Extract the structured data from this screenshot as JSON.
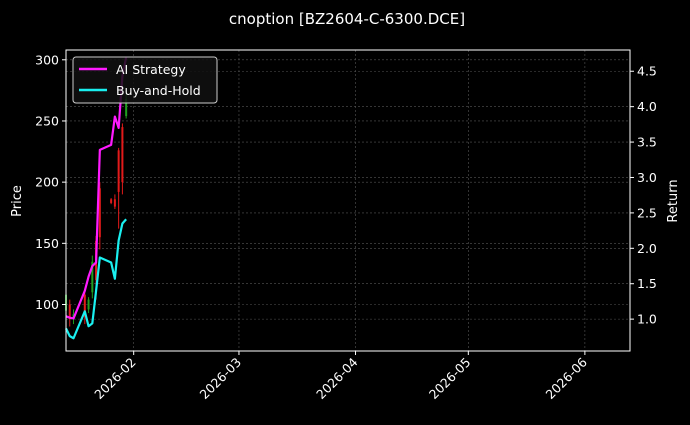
{
  "chart_data": {
    "type": "line",
    "title": "cnoption [BZ2604-C-6300.DCE]",
    "ylabel": "Price",
    "y2label": "Return",
    "xlim": [
      "2026-01-14",
      "2026-06-13"
    ],
    "ylim": [
      62,
      308
    ],
    "y2lim": [
      0.55,
      4.8
    ],
    "xticks": [
      "2026-02",
      "2026-03",
      "2026-04",
      "2026-05",
      "2026-06"
    ],
    "xtick_dates": [
      "2026-02-01",
      "2026-03-01",
      "2026-04-01",
      "2026-05-01",
      "2026-06-01"
    ],
    "yticks": [
      100,
      150,
      200,
      250,
      300
    ],
    "y2ticks": [
      "1.0",
      "1.5",
      "2.0",
      "2.5",
      "3.0",
      "3.5",
      "4.0",
      "4.5"
    ],
    "grid": true,
    "legend_position": "top-left",
    "background": "#000000",
    "colors": {
      "up": "#1f9e1f",
      "down": "#e31a1a",
      "strategy": "#ff1aff",
      "buyhold": "#1af0f0"
    },
    "candles": [
      {
        "date": "2026-01-14",
        "open": 95,
        "high": 122,
        "low": 86,
        "close": 108
      },
      {
        "date": "2026-01-15",
        "open": 100,
        "high": 104,
        "low": 82,
        "close": 88
      },
      {
        "date": "2026-01-16",
        "open": 88,
        "high": 96,
        "low": 84,
        "close": 92
      },
      {
        "date": "2026-01-19",
        "open": 108,
        "high": 112,
        "low": 84,
        "close": 90
      },
      {
        "date": "2026-01-20",
        "open": 96,
        "high": 106,
        "low": 93,
        "close": 104
      },
      {
        "date": "2026-01-21",
        "open": 110,
        "high": 140,
        "low": 105,
        "close": 135
      },
      {
        "date": "2026-01-22",
        "open": 152,
        "high": 156,
        "low": 104,
        "close": 120
      },
      {
        "date": "2026-01-23",
        "open": 195,
        "high": 200,
        "low": 145,
        "close": 155
      },
      {
        "date": "2026-01-26",
        "open": 186,
        "high": 187,
        "low": 182,
        "close": 183
      },
      {
        "date": "2026-01-27",
        "open": 186,
        "high": 190,
        "low": 178,
        "close": 180
      },
      {
        "date": "2026-01-28",
        "open": 226,
        "high": 228,
        "low": 162,
        "close": 192
      },
      {
        "date": "2026-01-29",
        "open": 245,
        "high": 248,
        "low": 190,
        "close": 200
      },
      {
        "date": "2026-01-30",
        "open": 254,
        "high": 272,
        "low": 252,
        "close": 268
      }
    ],
    "series": [
      {
        "name": "AI Strategy",
        "dates": [
          "2026-01-14",
          "2026-01-15",
          "2026-01-16",
          "2026-01-19",
          "2026-01-20",
          "2026-01-21",
          "2026-01-22",
          "2026-01-23",
          "2026-01-26",
          "2026-01-27",
          "2026-01-28",
          "2026-01-29",
          "2026-01-30"
        ],
        "values": [
          1.04,
          1.02,
          1.01,
          1.4,
          1.6,
          1.75,
          1.8,
          3.39,
          3.46,
          3.86,
          3.7,
          4.43,
          4.7
        ]
      },
      {
        "name": "Buy-and-Hold",
        "dates": [
          "2026-01-14",
          "2026-01-15",
          "2026-01-16",
          "2026-01-19",
          "2026-01-20",
          "2026-01-21",
          "2026-01-22",
          "2026-01-23",
          "2026-01-26",
          "2026-01-27",
          "2026-01-28",
          "2026-01-29",
          "2026-01-30"
        ],
        "values": [
          0.87,
          0.76,
          0.73,
          1.11,
          0.9,
          0.94,
          1.4,
          1.87,
          1.8,
          1.57,
          2.11,
          2.35,
          2.41
        ]
      }
    ]
  }
}
